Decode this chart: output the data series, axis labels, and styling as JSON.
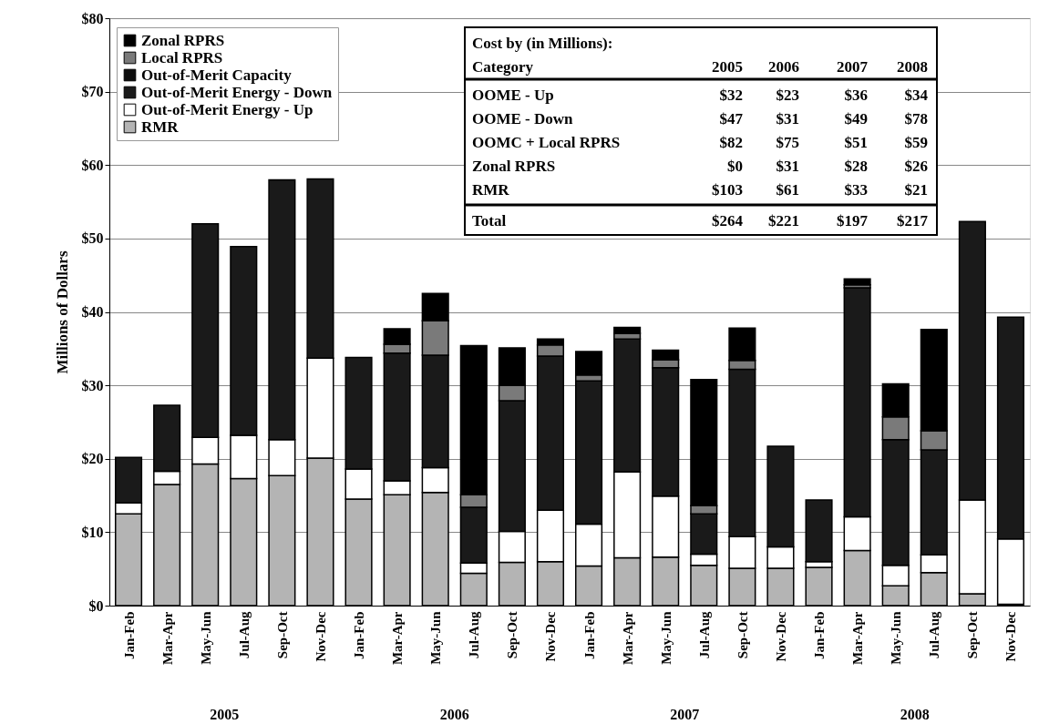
{
  "chart_data": {
    "type": "bar",
    "stacked": true,
    "ylabel": "Millions of Dollars",
    "categories": [
      "Jan-Feb",
      "Mar-Apr",
      "May-Jun",
      "Jul-Aug",
      "Sep-Oct",
      "Nov-Dec",
      "Jan-Feb",
      "Mar-Apr",
      "May-Jun",
      "Jul-Aug",
      "Sep-Oct",
      "Nov-Dec",
      "Jan-Feb",
      "Mar-Apr",
      "May-Jun",
      "Jul-Aug",
      "Sep-Oct",
      "Nov-Dec",
      "Jan-Feb",
      "Mar-Apr",
      "May-Jun",
      "Jul-Aug",
      "Sep-Oct",
      "Nov-Dec"
    ],
    "series": [
      {
        "name": "RMR",
        "color": "#b4b4b4",
        "values": [
          12.5,
          16.5,
          19.3,
          17.3,
          17.7,
          20.1,
          14.5,
          15.1,
          15.4,
          4.4,
          5.9,
          6.0,
          5.4,
          6.5,
          6.6,
          5.5,
          5.1,
          5.1,
          5.2,
          7.5,
          2.7,
          4.5,
          1.6,
          0.2
        ]
      },
      {
        "name": "Out-of-Merit Energy - Up",
        "color": "#ffffff",
        "values": [
          1.5,
          1.8,
          3.6,
          5.9,
          4.9,
          13.6,
          4.1,
          1.9,
          3.4,
          1.4,
          4.2,
          7.0,
          5.7,
          11.7,
          8.3,
          1.5,
          4.3,
          2.9,
          0.8,
          4.6,
          2.8,
          2.4,
          12.8,
          8.9
        ]
      },
      {
        "name": "Out-of-Merit Energy - Down",
        "color": "#1a1a1a",
        "values": [
          6.2,
          9.0,
          29.1,
          25.7,
          35.4,
          24.4,
          15.2,
          17.4,
          15.3,
          7.6,
          17.8,
          21.0,
          19.5,
          18.1,
          17.5,
          5.5,
          22.8,
          13.7,
          8.4,
          31.2,
          17.1,
          14.3,
          37.9,
          30.2
        ]
      },
      {
        "name": "Out-of-Merit Capacity",
        "color": "#0d0d0d",
        "values": [
          null,
          null,
          null,
          null,
          null,
          null,
          null,
          null,
          null,
          null,
          null,
          null,
          null,
          null,
          null,
          null,
          null,
          null,
          null,
          null,
          null,
          null,
          null,
          null
        ]
      },
      {
        "name": "Local RPRS",
        "color": "#7a7a7a",
        "values": [
          0,
          0,
          0,
          0,
          0,
          0,
          0,
          1.2,
          4.7,
          1.7,
          2.1,
          1.5,
          0.8,
          0.8,
          1.1,
          1.1,
          1.2,
          0,
          0,
          0.4,
          3.1,
          2.6,
          0,
          0
        ]
      },
      {
        "name": "Zonal RPRS",
        "color": "#000000",
        "values": [
          0,
          0,
          0,
          0,
          0,
          0,
          0,
          2.1,
          3.7,
          20.3,
          5.1,
          0.8,
          3.2,
          0.8,
          1.3,
          17.2,
          4.4,
          0,
          0,
          0.8,
          4.5,
          13.8,
          0,
          0
        ]
      }
    ],
    "ylim": [
      0,
      80
    ],
    "yticks": [
      {
        "value": 0,
        "label": "$0"
      },
      {
        "value": 10,
        "label": "$10"
      },
      {
        "value": 20,
        "label": "$20"
      },
      {
        "value": 30,
        "label": "$30"
      },
      {
        "value": 40,
        "label": "$40"
      },
      {
        "value": 50,
        "label": "$50"
      },
      {
        "value": 60,
        "label": "$60"
      },
      {
        "value": 70,
        "label": "$70"
      },
      {
        "value": 80,
        "label": "$80"
      }
    ],
    "grid": "y",
    "legend": "top left",
    "annotations": [
      "2005",
      "2006",
      "2007",
      "2008",
      "Cost by (in Millions):",
      "Category",
      "2005",
      "2006",
      "2007",
      "2008",
      "OOME - Up",
      "$32",
      "$23",
      "$36",
      "$34",
      "OOME - Down",
      "$47",
      "$31",
      "$49",
      "$78",
      "OOMC + Local RPRS",
      "$82",
      "$75",
      "$51",
      "$59",
      "Zonal RPRS",
      "$0",
      "$31",
      "$28",
      "$26",
      "RMR",
      "$103",
      "$61",
      "$33",
      "$21",
      "Total",
      "$264",
      "$221",
      "$197",
      "$217"
    ]
  }
}
